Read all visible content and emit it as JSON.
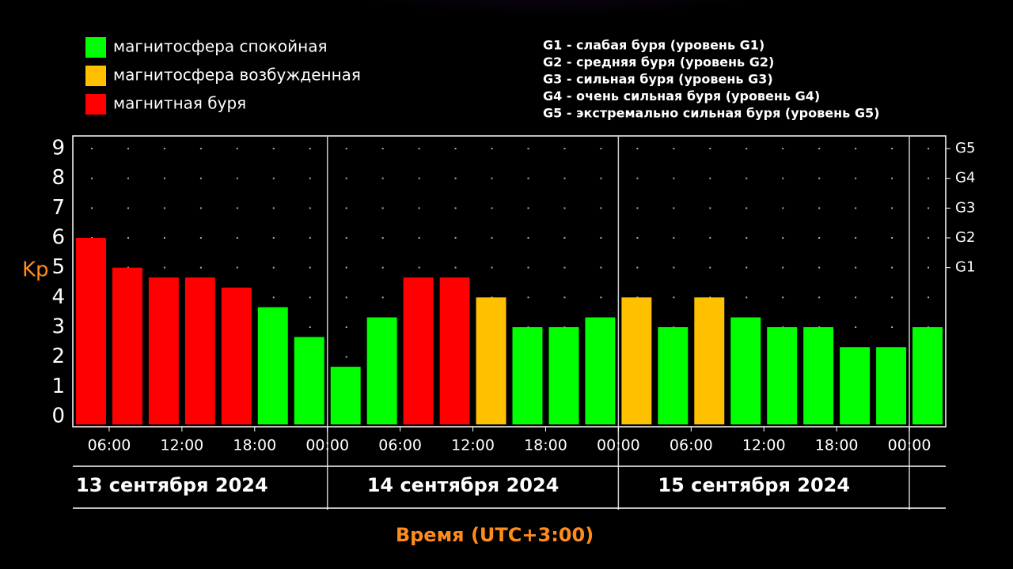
{
  "chart_data": {
    "type": "bar",
    "legend": [
      {
        "name": "магнитосфера спокойная",
        "color": "#00ff00"
      },
      {
        "name": "магнитосфера возбужденная",
        "color": "#ffc000"
      },
      {
        "name": "магнитная буря",
        "color": "#ff0000"
      }
    ],
    "storm_levels": [
      "G1 - слабая буря (уровень G1)",
      "G2 - средняя буря (уровень G2)",
      "G3 - сильная буря (уровень G3)",
      "G4 - очень сильная буря (уровень G4)",
      "G5 - экстремально сильная буря (уровень G5)"
    ],
    "y_label": "Kp",
    "x_label": "Время (UTC+3:00)",
    "x": [
      3,
      6,
      9,
      12,
      15,
      18,
      21,
      24,
      27,
      30,
      33,
      36,
      39,
      42,
      45,
      48,
      51,
      54,
      57,
      60,
      63,
      66,
      69,
      72
    ],
    "values": [
      6,
      5,
      4.67,
      4.67,
      4.33,
      3.67,
      2.67,
      1.67,
      3.33,
      4.67,
      4.67,
      4,
      3,
      3,
      3.33,
      4,
      3,
      4,
      3.33,
      3,
      3,
      2.33,
      2.33,
      3
    ],
    "colors": [
      "#ff0000",
      "#ff0000",
      "#ff0000",
      "#ff0000",
      "#ff0000",
      "#00ff00",
      "#00ff00",
      "#00ff00",
      "#00ff00",
      "#ff0000",
      "#ff0000",
      "#ffc000",
      "#00ff00",
      "#00ff00",
      "#00ff00",
      "#ffc000",
      "#00ff00",
      "#ffc000",
      "#00ff00",
      "#00ff00",
      "#00ff00",
      "#00ff00",
      "#00ff00",
      "#00ff00"
    ],
    "xlim": [
      3,
      75
    ],
    "xticks": [
      {
        "value": 6,
        "label": "06:00"
      },
      {
        "value": 12,
        "label": "12:00"
      },
      {
        "value": 18,
        "label": "18:00"
      },
      {
        "value": 24,
        "label": "00:00"
      },
      {
        "value": 30,
        "label": "06:00"
      },
      {
        "value": 36,
        "label": "12:00"
      },
      {
        "value": 42,
        "label": "18:00"
      },
      {
        "value": 48,
        "label": "00:00"
      },
      {
        "value": 54,
        "label": "06:00"
      },
      {
        "value": 60,
        "label": "12:00"
      },
      {
        "value": 66,
        "label": "18:00"
      },
      {
        "value": 72,
        "label": "00:00"
      }
    ],
    "days": [
      "13 сентября 2024",
      "14 сентября 2024",
      "15 сентября 2024"
    ],
    "day_starts": [
      0,
      24,
      48,
      72
    ],
    "ylim": [
      0,
      9
    ],
    "yticks": [
      0,
      1,
      2,
      3,
      4,
      5,
      6,
      7,
      8,
      9
    ],
    "y2lim": [
      0,
      9
    ],
    "y2ticks": [
      {
        "value": 5,
        "label": "G1"
      },
      {
        "value": 6,
        "label": "G2"
      },
      {
        "value": 7,
        "label": "G3"
      },
      {
        "value": 8,
        "label": "G4"
      },
      {
        "value": 9,
        "label": "G5"
      }
    ],
    "grid": true
  }
}
